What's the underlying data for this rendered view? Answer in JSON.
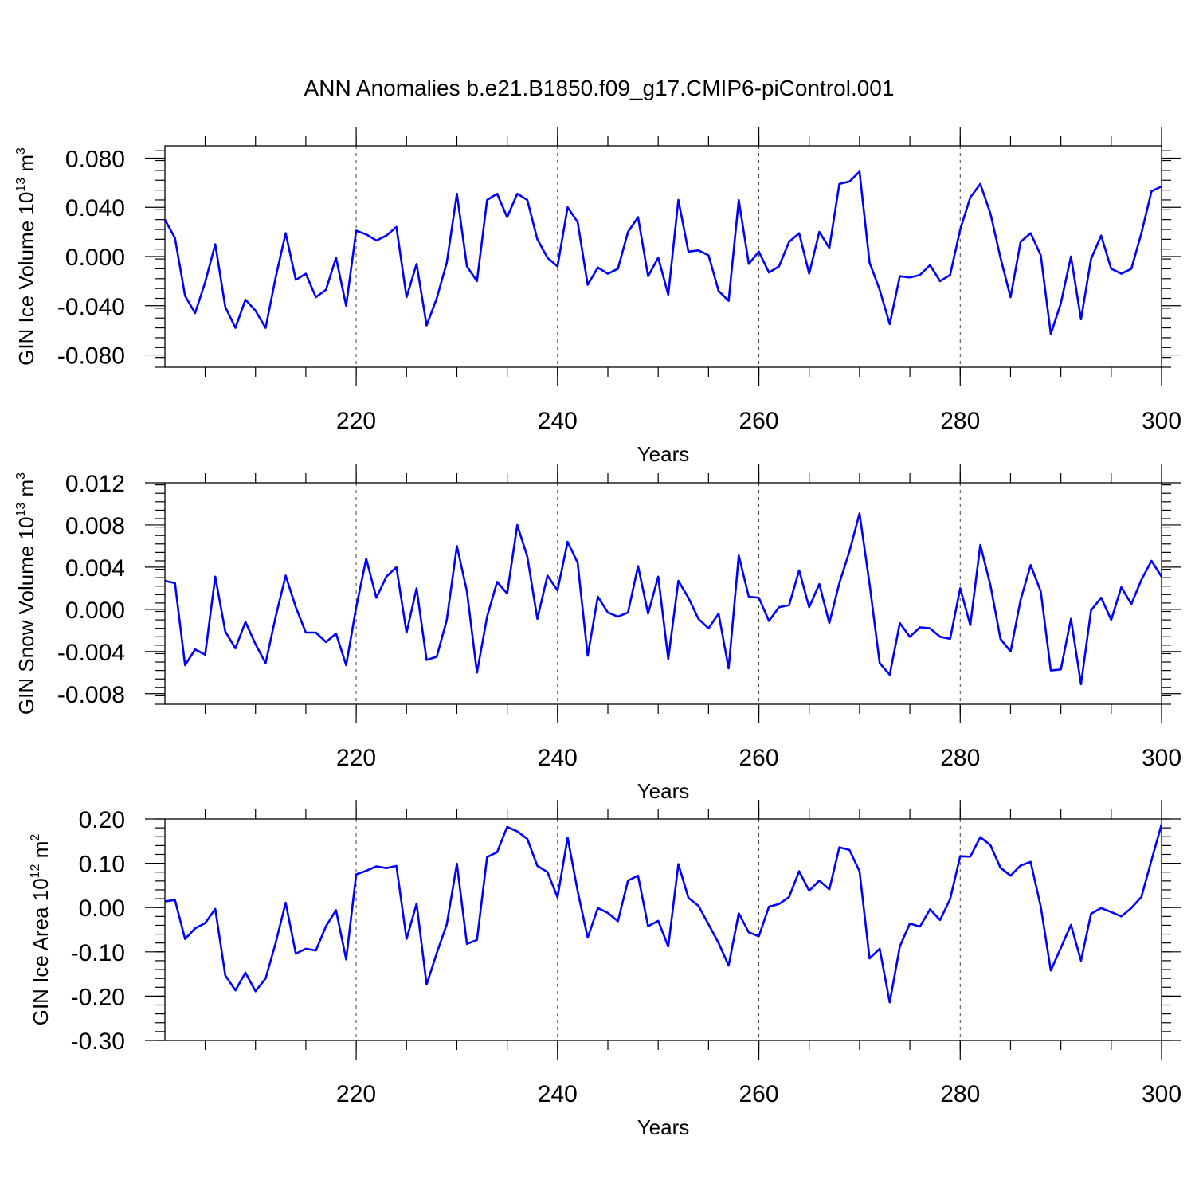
{
  "title": "ANN Anomalies b.e21.B1850.f09_g17.CMIP6-piControl.001",
  "colors": {
    "series": "#0000ff",
    "grid": "#444444",
    "axis": "#000000"
  },
  "chart_data": [
    {
      "type": "line",
      "ylabel_main": "GIN Ice Volume 10",
      "ylabel_exp": "13",
      "ylabel_unit": " m",
      "ylabel_unit_exp": "3",
      "xlabel": "Years",
      "xlim": [
        201,
        300
      ],
      "ylim": [
        -0.09,
        0.09
      ],
      "yticks": [
        -0.08,
        -0.04,
        0.0,
        0.04,
        0.08
      ],
      "ytick_labels": [
        "-0.080",
        "-0.040",
        "0.000",
        "0.040",
        "0.080"
      ],
      "xticks": [
        220,
        240,
        260,
        280,
        300
      ],
      "xtick_labels": [
        "220",
        "240",
        "260",
        "280",
        "300"
      ],
      "x_start": 201,
      "values": [
        0.03,
        0.015,
        -0.032,
        -0.046,
        -0.021,
        0.01,
        -0.041,
        -0.058,
        -0.035,
        -0.044,
        -0.058,
        -0.017,
        0.019,
        -0.019,
        -0.014,
        -0.033,
        -0.027,
        -0.001,
        -0.04,
        0.021,
        0.018,
        0.013,
        0.017,
        0.024,
        -0.033,
        -0.006,
        -0.056,
        -0.034,
        -0.005,
        0.051,
        -0.008,
        -0.02,
        0.046,
        0.051,
        0.032,
        0.051,
        0.046,
        0.014,
        -0.001,
        -0.008,
        0.04,
        0.028,
        -0.023,
        -0.009,
        -0.014,
        -0.01,
        0.02,
        0.032,
        -0.016,
        -0.001,
        -0.031,
        0.046,
        0.004,
        0.005,
        0.001,
        -0.028,
        -0.036,
        0.046,
        -0.006,
        0.004,
        -0.013,
        -0.008,
        0.012,
        0.019,
        -0.014,
        0.02,
        0.007,
        0.059,
        0.061,
        0.069,
        -0.005,
        -0.027,
        -0.055,
        -0.016,
        -0.017,
        -0.015,
        -0.007,
        -0.02,
        -0.015,
        0.022,
        0.048,
        0.059,
        0.035,
        -0.001,
        -0.033,
        0.012,
        0.019,
        0.001,
        -0.063,
        -0.038,
        0.0,
        -0.051,
        -0.002,
        0.017,
        -0.01,
        -0.014,
        -0.01,
        0.019,
        0.053,
        0.057
      ]
    },
    {
      "type": "line",
      "ylabel_main": "GIN Snow Volume 10",
      "ylabel_exp": "13",
      "ylabel_unit": " m",
      "ylabel_unit_exp": "3",
      "xlabel": "Years",
      "xlim": [
        201,
        300
      ],
      "ylim": [
        -0.009,
        0.012
      ],
      "yticks": [
        -0.008,
        -0.004,
        0.0,
        0.004,
        0.008,
        0.012
      ],
      "ytick_labels": [
        "-0.008",
        "-0.004",
        "0.000",
        "0.004",
        "0.008",
        "0.012"
      ],
      "xticks": [
        220,
        240,
        260,
        280,
        300
      ],
      "xtick_labels": [
        "220",
        "240",
        "260",
        "280",
        "300"
      ],
      "x_start": 201,
      "values": [
        0.0027,
        0.0025,
        -0.0053,
        -0.0038,
        -0.0043,
        0.0031,
        -0.0021,
        -0.0037,
        -0.0012,
        -0.0033,
        -0.0051,
        -0.0007,
        0.0032,
        0.0002,
        -0.0022,
        -0.0022,
        -0.0031,
        -0.0023,
        -0.0053,
        0.0002,
        0.0048,
        0.0011,
        0.0031,
        0.004,
        -0.0022,
        0.002,
        -0.0048,
        -0.0045,
        -0.001,
        0.006,
        0.0017,
        -0.006,
        -0.0007,
        0.0026,
        0.0015,
        0.008,
        0.005,
        -0.0009,
        0.0032,
        0.0018,
        0.0064,
        0.0044,
        -0.0044,
        0.0012,
        -0.0003,
        -0.0007,
        -0.0003,
        0.0041,
        -0.0004,
        0.0031,
        -0.0047,
        0.0027,
        0.0011,
        -0.0009,
        -0.0018,
        -0.0004,
        -0.0056,
        0.0051,
        0.0012,
        0.0011,
        -0.0011,
        0.0002,
        0.0004,
        0.0037,
        0.0002,
        0.0024,
        -0.0013,
        0.0025,
        0.0055,
        0.0091,
        0.0024,
        -0.0051,
        -0.0062,
        -0.0013,
        -0.0026,
        -0.0017,
        -0.0018,
        -0.0026,
        -0.0028,
        0.002,
        -0.0015,
        0.0061,
        0.0023,
        -0.0028,
        -0.004,
        0.0009,
        0.0042,
        0.0017,
        -0.0058,
        -0.0057,
        -0.0009,
        -0.0071,
        -0.0001,
        0.0011,
        -0.001,
        0.0021,
        0.0005,
        0.0028,
        0.0046,
        0.0031
      ]
    },
    {
      "type": "line",
      "ylabel_main": "GIN Ice Area 10",
      "ylabel_exp": "12",
      "ylabel_unit": " m",
      "ylabel_unit_exp": "2",
      "xlabel": "Years",
      "xlim": [
        201,
        300
      ],
      "ylim": [
        -0.3,
        0.2
      ],
      "yticks": [
        -0.3,
        -0.2,
        -0.1,
        0.0,
        0.1,
        0.2
      ],
      "ytick_labels": [
        "-0.30",
        "-0.20",
        "-0.10",
        "0.00",
        "0.10",
        "0.20"
      ],
      "xticks": [
        220,
        240,
        260,
        280,
        300
      ],
      "xtick_labels": [
        "220",
        "240",
        "260",
        "280",
        "300"
      ],
      "x_start": 201,
      "values": [
        0.014,
        0.017,
        -0.071,
        -0.047,
        -0.035,
        -0.003,
        -0.153,
        -0.187,
        -0.147,
        -0.189,
        -0.16,
        -0.08,
        0.011,
        -0.104,
        -0.093,
        -0.097,
        -0.042,
        -0.006,
        -0.117,
        0.075,
        0.083,
        0.093,
        0.089,
        0.094,
        -0.071,
        0.009,
        -0.174,
        -0.103,
        -0.038,
        0.099,
        -0.082,
        -0.073,
        0.114,
        0.125,
        0.182,
        0.172,
        0.155,
        0.094,
        0.08,
        0.023,
        0.158,
        0.037,
        -0.068,
        -0.001,
        -0.012,
        -0.031,
        0.061,
        0.072,
        -0.042,
        -0.03,
        -0.088,
        0.098,
        0.022,
        0.004,
        -0.038,
        -0.08,
        -0.131,
        -0.013,
        -0.056,
        -0.065,
        0.002,
        0.008,
        0.024,
        0.082,
        0.038,
        0.061,
        0.041,
        0.136,
        0.13,
        0.082,
        -0.115,
        -0.093,
        -0.214,
        -0.088,
        -0.036,
        -0.043,
        -0.004,
        -0.028,
        0.019,
        0.116,
        0.115,
        0.159,
        0.141,
        0.09,
        0.072,
        0.095,
        0.103,
        0.002,
        -0.142,
        -0.091,
        -0.039,
        -0.12,
        -0.014,
        -0.001,
        -0.01,
        -0.02,
        -0.001,
        0.024,
        0.107,
        0.188
      ]
    }
  ]
}
